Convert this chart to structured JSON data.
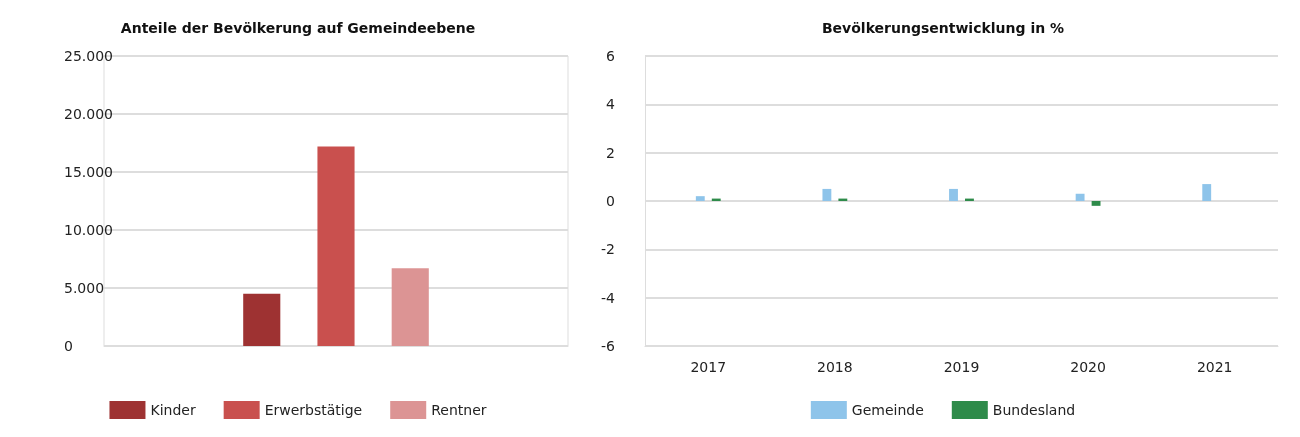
{
  "chart_data": [
    {
      "type": "bar",
      "title": "Anteile der Bevölkerung auf Gemeindeebene",
      "categories": [
        null
      ],
      "series": [
        {
          "name": "Kinder",
          "color": "#9e3232",
          "values": [
            4500
          ]
        },
        {
          "name": "Erwerbstätige",
          "color": "#c9504e",
          "values": [
            17200
          ]
        },
        {
          "name": "Rentner",
          "color": "#dc9494",
          "values": [
            6700
          ]
        }
      ],
      "ylim": [
        0,
        25000
      ],
      "yticks": [
        {
          "value": 0,
          "label": "0"
        },
        {
          "value": 5000,
          "label": "5.000"
        },
        {
          "value": 10000,
          "label": "10.000"
        },
        {
          "value": 15000,
          "label": "15.000"
        },
        {
          "value": 20000,
          "label": "20.000"
        },
        {
          "value": 25000,
          "label": "25.000"
        }
      ],
      "grid": "y",
      "legend": "bottom"
    },
    {
      "type": "bar",
      "title": "Bevölkerungsentwicklung in %",
      "categories": [
        "2017",
        "2018",
        "2019",
        "2020",
        "2021"
      ],
      "series": [
        {
          "name": "Gemeinde",
          "color": "#8ec4ea",
          "values": [
            0.2,
            0.5,
            0.5,
            0.3,
            0.7
          ]
        },
        {
          "name": "Bundesland",
          "color": "#2e8b4a",
          "values": [
            0.1,
            0.1,
            0.1,
            -0.2,
            0
          ]
        }
      ],
      "ylim": [
        -6,
        6
      ],
      "yticks": [
        -6,
        -4,
        -2,
        0,
        2,
        4,
        6
      ],
      "grid": "y",
      "legend": "bottom"
    }
  ]
}
